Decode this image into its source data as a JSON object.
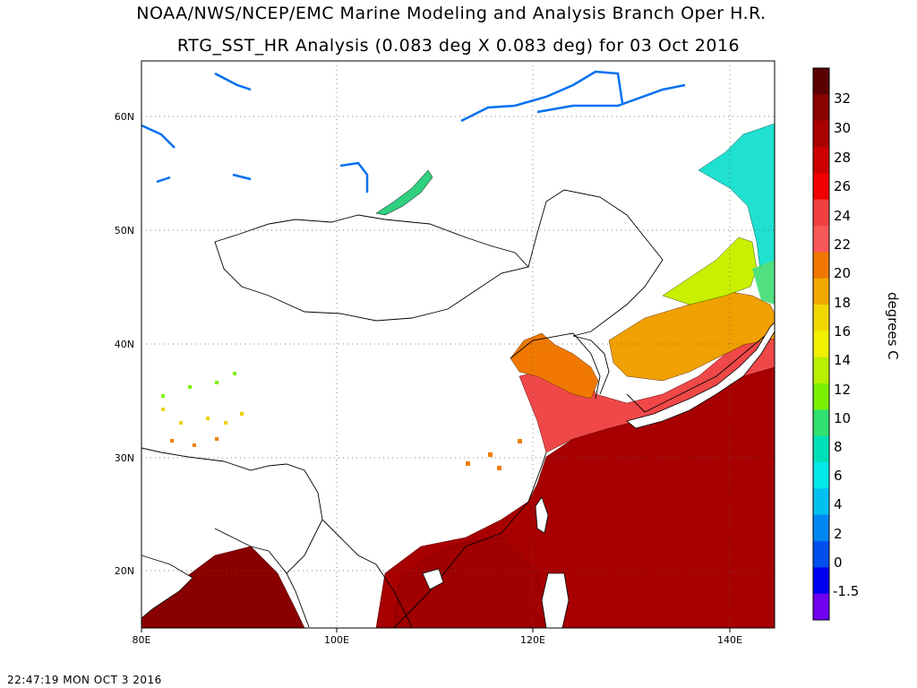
{
  "title": {
    "line1": "NOAA/NWS/NCEP/EMC Marine Modeling and Analysis Branch Oper H.R.",
    "line2": "RTG_SST_HR Analysis (0.083 deg X 0.083 deg) for 03 Oct 2016"
  },
  "axes": {
    "lon_ticks": [
      "80E",
      "100E",
      "120E",
      "140E"
    ],
    "lat_ticks": [
      "60N",
      "50N",
      "40N",
      "30N",
      "20N"
    ],
    "lon_range": [
      80,
      145
    ],
    "lat_range": [
      15,
      65
    ]
  },
  "colorbar": {
    "units": "degrees C",
    "tick_labels": [
      "32",
      "30",
      "28",
      "26",
      "24",
      "22",
      "20",
      "18",
      "16",
      "14",
      "12",
      "10",
      "8",
      "6",
      "4",
      "2",
      "0",
      "-1.5"
    ],
    "colors": [
      "#5a0000",
      "#8b0000",
      "#aa0000",
      "#cc0000",
      "#f00000",
      "#f04040",
      "#f85858",
      "#f07800",
      "#f0a800",
      "#f0d800",
      "#f0f000",
      "#b8f000",
      "#78f000",
      "#30e070",
      "#00e0b8",
      "#00e8e8",
      "#00c0f0",
      "#0088f0",
      "#0050f0",
      "#0000f0",
      "#7000f0"
    ]
  },
  "timestamp": "22:47:19  MON OCT 3 2016"
}
